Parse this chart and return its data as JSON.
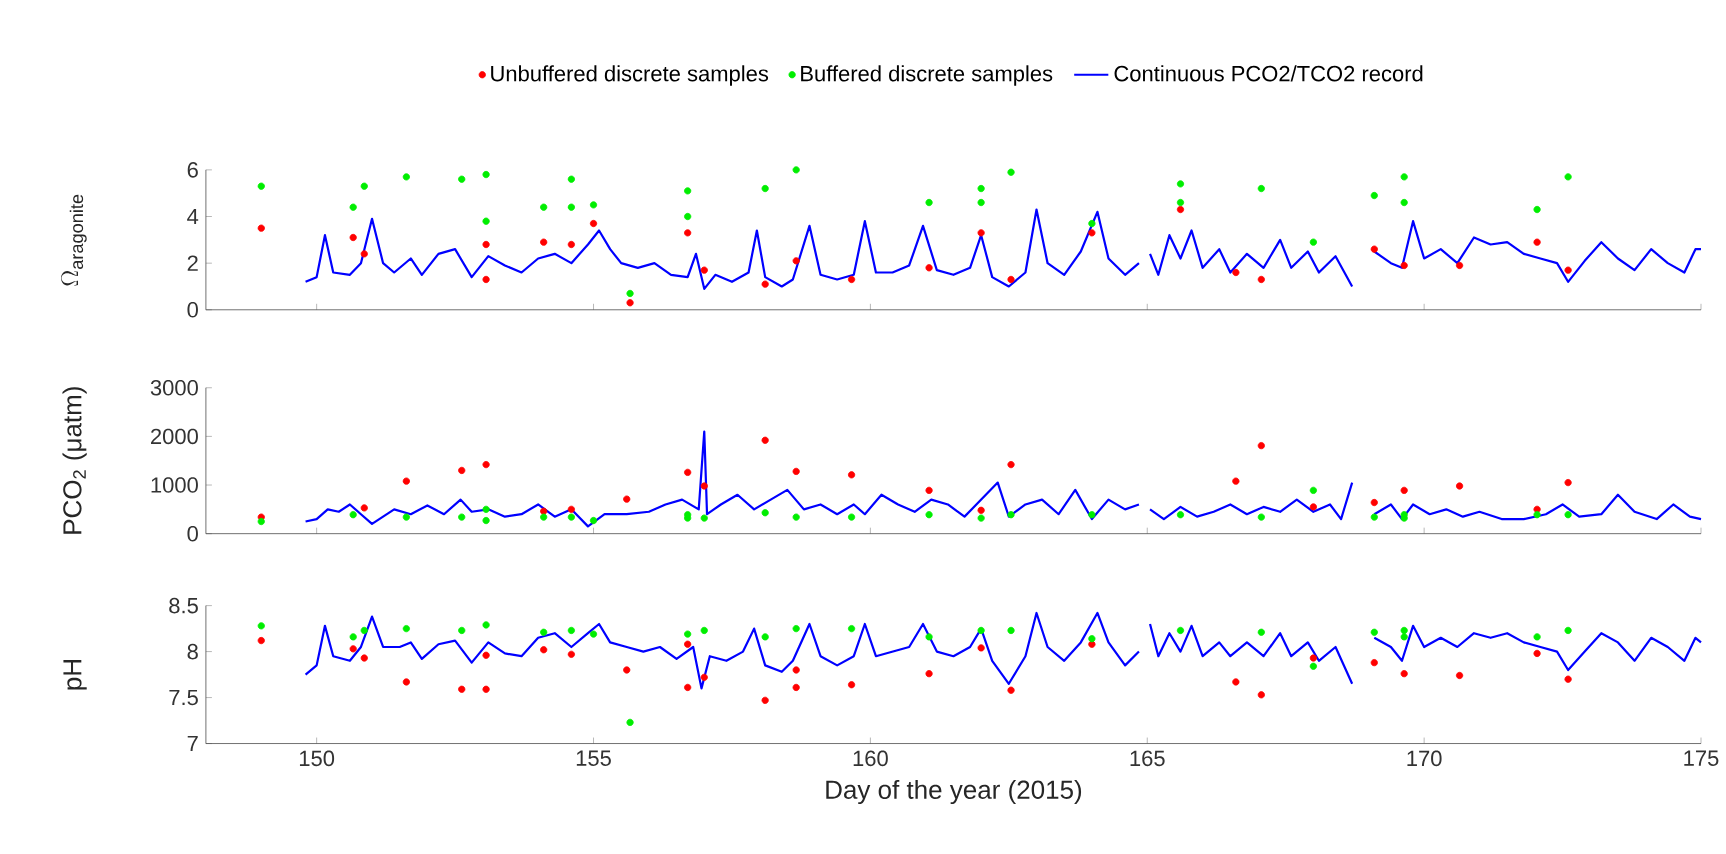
{
  "chart_data": [
    {
      "type": "scatter",
      "ylabel": "\\Omega_{\\mathrm{aragonite}}",
      "xlim": [
        148,
        175
      ],
      "xticks": [
        150,
        155,
        160,
        165,
        170,
        175
      ],
      "ylim": [
        0,
        6
      ],
      "yticks": [
        0,
        2,
        4,
        6
      ],
      "tick_labels": "y",
      "legend": "top",
      "grid": false,
      "series": [
        {
          "name": "Unbuffered discrete samples",
          "marker": "circle",
          "color": "#ff0000",
          "x": [
            149.0,
            150.66,
            150.86,
            153.06,
            153.06,
            154.1,
            154.6,
            155.0,
            155.66,
            156.7,
            157.0,
            158.1,
            158.66,
            159.66,
            161.06,
            162.0,
            162.54,
            164.0,
            165.6,
            166.6,
            167.06,
            168.0,
            169.1,
            169.64,
            170.64,
            172.04,
            172.6
          ],
          "values": [
            3.5,
            3.1,
            2.4,
            2.8,
            1.3,
            2.9,
            2.8,
            3.7,
            0.3,
            3.3,
            1.7,
            1.1,
            2.1,
            1.3,
            1.8,
            3.3,
            1.3,
            3.3,
            4.3,
            1.6,
            1.3,
            null,
            2.6,
            1.9,
            1.9,
            2.9,
            1.7
          ]
        },
        {
          "name": "Buffered discrete samples",
          "marker": "circle",
          "color": "#00ee00",
          "x": [
            149.0,
            150.66,
            150.86,
            151.62,
            152.62,
            153.06,
            153.06,
            154.1,
            154.6,
            154.6,
            155.0,
            155.66,
            156.7,
            156.7,
            158.1,
            158.66,
            161.06,
            162.0,
            162.0,
            162.54,
            164.0,
            165.6,
            165.6,
            167.06,
            168.0,
            169.1,
            169.64,
            169.64,
            172.04,
            172.6
          ],
          "values": [
            5.3,
            4.4,
            5.3,
            5.7,
            5.6,
            5.8,
            3.8,
            4.4,
            5.6,
            4.4,
            4.5,
            0.7,
            5.1,
            4.0,
            5.2,
            6.0,
            4.6,
            5.2,
            4.6,
            5.9,
            3.7,
            5.4,
            4.6,
            5.2,
            2.9,
            4.9,
            5.7,
            4.6,
            4.3,
            5.7
          ]
        },
        {
          "name": "Continuous PCO2/TCO2 record",
          "type": "line",
          "marker": "none",
          "line_style": "solid",
          "color": "#0000ff",
          "x": [
            149.8,
            150.0,
            150.15,
            150.3,
            150.6,
            150.8,
            151.0,
            151.2,
            151.4,
            151.7,
            151.9,
            152.2,
            152.5,
            152.8,
            153.1,
            153.4,
            153.7,
            154.0,
            154.3,
            154.6,
            154.9,
            155.1,
            155.3,
            155.5,
            155.8,
            156.1,
            156.4,
            156.7,
            156.85,
            157.0,
            157.2,
            157.5,
            157.8,
            157.95,
            158.1,
            158.4,
            158.6,
            158.9,
            159.1,
            159.4,
            159.7,
            159.9,
            160.1,
            160.4,
            160.7,
            160.95,
            161.2,
            161.5,
            161.8,
            162.0,
            162.2,
            162.5,
            162.8,
            163.0,
            163.2,
            163.5,
            163.8,
            164.1,
            164.3,
            164.6,
            164.85,
            164.95,
            165.05,
            165.2,
            165.4,
            165.6,
            165.8,
            166.0,
            166.3,
            166.5,
            166.8,
            167.1,
            167.4,
            167.6,
            167.9,
            168.1,
            168.4,
            168.7,
            168.85,
            169.1,
            169.4,
            169.6,
            169.8,
            170.0,
            170.3,
            170.6,
            170.9,
            171.2,
            171.5,
            171.8,
            172.1,
            172.4,
            172.6,
            172.9,
            173.2,
            173.5,
            173.8,
            174.1,
            174.4,
            174.7,
            174.9,
            175.0
          ],
          "values": [
            1.2,
            1.4,
            3.2,
            1.6,
            1.5,
            2.0,
            3.9,
            2.0,
            1.6,
            2.2,
            1.5,
            2.4,
            2.6,
            1.4,
            2.3,
            1.9,
            1.6,
            2.2,
            2.4,
            2.0,
            2.8,
            3.4,
            2.6,
            2.0,
            1.8,
            2.0,
            1.5,
            1.4,
            2.4,
            0.9,
            1.5,
            1.2,
            1.6,
            3.4,
            1.4,
            1.0,
            1.3,
            3.6,
            1.5,
            1.3,
            1.5,
            3.8,
            1.6,
            1.6,
            1.9,
            3.6,
            1.7,
            1.5,
            1.8,
            3.2,
            1.4,
            1.0,
            1.6,
            4.3,
            2.0,
            1.5,
            2.5,
            4.2,
            2.2,
            1.5,
            2.0,
            null,
            2.4,
            1.5,
            3.2,
            2.2,
            3.4,
            1.8,
            2.6,
            1.6,
            2.4,
            1.8,
            3.0,
            1.8,
            2.5,
            1.6,
            2.3,
            1.0,
            null,
            2.5,
            2.0,
            1.8,
            3.8,
            2.2,
            2.6,
            2.0,
            3.1,
            2.8,
            2.9,
            2.4,
            2.2,
            2.0,
            1.2,
            2.1,
            2.9,
            2.2,
            1.7,
            2.6,
            2.0,
            1.6,
            2.6,
            2.6
          ]
        }
      ]
    },
    {
      "type": "scatter",
      "ylabel": "PCO$_{2}$ (μatm)",
      "xlim": [
        148,
        175
      ],
      "xticks": [
        150,
        155,
        160,
        165,
        170,
        175
      ],
      "ylim": [
        0,
        3000
      ],
      "yticks": [
        0,
        1000,
        2000,
        3000
      ],
      "tick_labels": "y",
      "grid": false,
      "series": [
        {
          "marker": "circle",
          "color": "#ff0000",
          "x": [
            149.0,
            150.86,
            151.62,
            152.62,
            153.06,
            154.1,
            154.6,
            155.0,
            155.6,
            156.7,
            157.0,
            158.1,
            158.66,
            159.66,
            161.06,
            162.0,
            162.54,
            166.6,
            167.06,
            168.0,
            169.1,
            169.64,
            170.64,
            172.04,
            172.6
          ],
          "values": [
            340,
            530,
            1080,
            1300,
            1420,
            460,
            500,
            null,
            710,
            1260,
            980,
            1920,
            1280,
            1210,
            890,
            480,
            1420,
            1080,
            1810,
            550,
            640,
            890,
            980,
            500,
            1050
          ]
        },
        {
          "marker": "circle",
          "color": "#00ee00",
          "x": [
            149.0,
            150.66,
            151.62,
            152.62,
            153.06,
            153.06,
            154.1,
            154.6,
            155.0,
            156.7,
            156.7,
            157.0,
            158.1,
            158.66,
            159.66,
            161.06,
            162.0,
            162.54,
            164.0,
            165.6,
            167.06,
            168.0,
            169.1,
            169.64,
            169.64,
            172.04,
            172.6
          ],
          "values": [
            250,
            390,
            340,
            340,
            500,
            270,
            340,
            340,
            270,
            390,
            320,
            320,
            430,
            340,
            340,
            390,
            320,
            390,
            390,
            390,
            340,
            890,
            340,
            390,
            320,
            390,
            390
          ]
        },
        {
          "type": "line",
          "marker": "none",
          "line_style": "solid",
          "color": "#0000ff",
          "x": [
            149.8,
            150.0,
            150.2,
            150.4,
            150.6,
            150.8,
            151.0,
            151.2,
            151.4,
            151.7,
            152.0,
            152.3,
            152.6,
            152.8,
            153.1,
            153.4,
            153.7,
            154.0,
            154.3,
            154.6,
            154.9,
            155.2,
            155.6,
            156.0,
            156.3,
            156.6,
            156.9,
            157.0,
            157.05,
            157.3,
            157.6,
            157.9,
            158.2,
            158.5,
            158.8,
            159.1,
            159.4,
            159.7,
            159.9,
            160.2,
            160.5,
            160.8,
            161.1,
            161.4,
            161.7,
            162.0,
            162.3,
            162.5,
            162.8,
            163.1,
            163.4,
            163.7,
            164.0,
            164.3,
            164.6,
            164.85,
            164.95,
            165.05,
            165.3,
            165.6,
            165.9,
            166.2,
            166.5,
            166.8,
            167.1,
            167.4,
            167.7,
            168.0,
            168.3,
            168.5,
            168.7,
            168.85,
            169.1,
            169.4,
            169.6,
            169.8,
            170.1,
            170.4,
            170.7,
            171.0,
            171.4,
            171.8,
            172.2,
            172.5,
            172.8,
            173.2,
            173.5,
            173.8,
            174.2,
            174.5,
            174.8,
            175.0
          ],
          "values": [
            250,
            300,
            500,
            450,
            600,
            400,
            200,
            350,
            500,
            400,
            580,
            400,
            700,
            450,
            500,
            350,
            400,
            600,
            350,
            500,
            150,
            400,
            400,
            450,
            600,
            700,
            500,
            2100,
            400,
            600,
            800,
            500,
            700,
            900,
            500,
            600,
            400,
            600,
            400,
            800,
            600,
            450,
            700,
            600,
            350,
            700,
            1050,
            350,
            600,
            700,
            400,
            900,
            300,
            700,
            500,
            600,
            null,
            500,
            300,
            550,
            350,
            450,
            600,
            400,
            550,
            450,
            700,
            450,
            600,
            300,
            1050,
            null,
            400,
            600,
            300,
            600,
            400,
            500,
            350,
            450,
            300,
            300,
            400,
            600,
            350,
            400,
            800,
            450,
            300,
            600,
            350,
            300
          ]
        }
      ]
    },
    {
      "type": "scatter",
      "ylabel": "pH",
      "xlabel": "Day of the year (2015)",
      "xlim": [
        148,
        175
      ],
      "xticks": [
        150,
        155,
        160,
        165,
        170,
        175
      ],
      "ylim": [
        7,
        8.5
      ],
      "yticks": [
        7,
        7.5,
        8,
        8.5
      ],
      "grid": false,
      "series": [
        {
          "marker": "circle",
          "color": "#ff0000",
          "x": [
            149.0,
            150.66,
            150.86,
            151.62,
            152.62,
            153.06,
            153.06,
            154.1,
            154.6,
            155.0,
            155.6,
            156.7,
            156.7,
            157.0,
            158.1,
            158.66,
            158.66,
            159.66,
            161.06,
            162.0,
            162.54,
            164.0,
            166.6,
            167.06,
            168.0,
            169.1,
            169.64,
            170.64,
            172.04,
            172.6
          ],
          "values": [
            8.12,
            8.03,
            7.93,
            7.67,
            7.59,
            7.59,
            7.96,
            8.02,
            7.97,
            null,
            7.8,
            7.61,
            8.08,
            7.72,
            7.47,
            7.61,
            7.8,
            7.64,
            7.76,
            8.04,
            7.58,
            8.08,
            7.67,
            7.53,
            7.93,
            7.88,
            7.76,
            7.74,
            7.98,
            7.7
          ]
        },
        {
          "marker": "circle",
          "color": "#00ee00",
          "x": [
            149.0,
            150.66,
            150.86,
            151.62,
            152.62,
            153.06,
            154.1,
            154.6,
            155.0,
            155.66,
            156.7,
            157.0,
            158.1,
            158.66,
            159.66,
            161.06,
            162.0,
            162.54,
            164.0,
            165.6,
            167.06,
            168.0,
            169.1,
            169.64,
            169.64,
            172.04,
            172.6
          ],
          "values": [
            8.28,
            8.16,
            8.23,
            8.25,
            8.23,
            8.29,
            8.21,
            8.23,
            8.19,
            7.23,
            8.19,
            8.23,
            8.16,
            8.25,
            8.25,
            8.16,
            8.23,
            8.23,
            8.14,
            8.23,
            8.21,
            7.84,
            8.21,
            8.23,
            8.16,
            8.16,
            8.23
          ]
        },
        {
          "type": "line",
          "marker": "none",
          "line_style": "solid",
          "color": "#0000ff",
          "x": [
            149.8,
            150.0,
            150.15,
            150.3,
            150.6,
            150.8,
            151.0,
            151.2,
            151.5,
            151.7,
            151.9,
            152.2,
            152.5,
            152.8,
            153.1,
            153.4,
            153.7,
            154.0,
            154.3,
            154.6,
            154.9,
            155.1,
            155.3,
            155.6,
            155.9,
            156.2,
            156.5,
            156.8,
            156.95,
            157.1,
            157.4,
            157.7,
            157.9,
            158.1,
            158.4,
            158.6,
            158.9,
            159.1,
            159.4,
            159.7,
            159.9,
            160.1,
            160.4,
            160.7,
            160.95,
            161.2,
            161.5,
            161.8,
            162.0,
            162.2,
            162.5,
            162.8,
            163.0,
            163.2,
            163.5,
            163.8,
            164.1,
            164.3,
            164.6,
            164.85,
            164.95,
            165.05,
            165.2,
            165.4,
            165.6,
            165.8,
            166.0,
            166.3,
            166.5,
            166.8,
            167.1,
            167.4,
            167.6,
            167.9,
            168.1,
            168.4,
            168.7,
            168.85,
            169.1,
            169.4,
            169.6,
            169.8,
            170.0,
            170.3,
            170.6,
            170.9,
            171.2,
            171.5,
            171.8,
            172.1,
            172.4,
            172.6,
            172.9,
            173.2,
            173.5,
            173.8,
            174.1,
            174.4,
            174.7,
            174.9,
            175.0
          ],
          "values": [
            7.75,
            7.85,
            8.28,
            7.95,
            7.9,
            8.05,
            8.38,
            8.05,
            8.05,
            8.1,
            7.92,
            8.08,
            8.12,
            7.88,
            8.1,
            7.98,
            7.95,
            8.15,
            8.2,
            8.05,
            8.2,
            8.3,
            8.1,
            8.05,
            8.0,
            8.05,
            7.92,
            8.05,
            7.6,
            7.95,
            7.9,
            8.0,
            8.25,
            7.85,
            7.78,
            7.9,
            8.3,
            7.95,
            7.85,
            7.95,
            8.3,
            7.95,
            8.0,
            8.05,
            8.3,
            8.0,
            7.95,
            8.05,
            8.25,
            7.9,
            7.65,
            7.95,
            8.42,
            8.05,
            7.9,
            8.1,
            8.42,
            8.1,
            7.85,
            8.0,
            null,
            8.3,
            7.95,
            8.2,
            8.0,
            8.28,
            7.95,
            8.1,
            7.95,
            8.1,
            7.95,
            8.2,
            7.95,
            8.1,
            7.9,
            8.05,
            7.65,
            null,
            8.15,
            8.05,
            7.9,
            8.28,
            8.05,
            8.15,
            8.05,
            8.2,
            8.15,
            8.2,
            8.1,
            8.05,
            8.0,
            7.8,
            8.0,
            8.2,
            8.1,
            7.9,
            8.15,
            8.05,
            7.9,
            8.15,
            8.1
          ]
        }
      ]
    }
  ]
}
